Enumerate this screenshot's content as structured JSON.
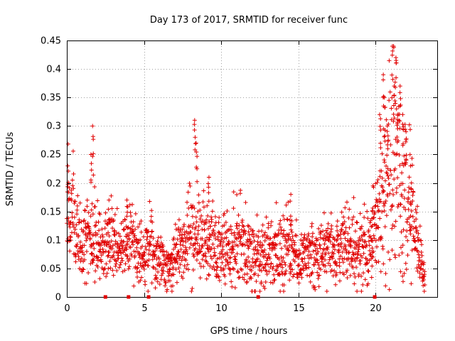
{
  "chart_data": {
    "type": "scatter",
    "title": "Day 173 of 2017, SRMTID for receiver func",
    "xlabel": "GPS time / hours",
    "ylabel": "SRMTID / TECUs",
    "xlim": [
      0,
      24
    ],
    "ylim": [
      0,
      0.45
    ],
    "xticks": [
      "0",
      "5",
      "10",
      "15",
      "20"
    ],
    "yticks": [
      "0",
      "0.05",
      "0.1",
      "0.15",
      "0.2",
      "0.25",
      "0.3",
      "0.35",
      "0.4",
      "0.45"
    ],
    "grid": true,
    "marker": "+",
    "color": "#e00000",
    "zero_markers": [
      2.5,
      4.0,
      5.3,
      12.4,
      19.95
    ],
    "trend": [
      [
        0.0,
        0.14
      ],
      [
        0.3,
        0.15
      ],
      [
        0.6,
        0.1
      ],
      [
        1.0,
        0.09
      ],
      [
        1.4,
        0.1
      ],
      [
        1.8,
        0.11
      ],
      [
        2.2,
        0.08
      ],
      [
        2.6,
        0.1
      ],
      [
        3.0,
        0.09
      ],
      [
        3.4,
        0.08
      ],
      [
        3.8,
        0.09
      ],
      [
        4.2,
        0.1
      ],
      [
        4.6,
        0.08
      ],
      [
        5.0,
        0.07
      ],
      [
        5.4,
        0.1
      ],
      [
        5.8,
        0.07
      ],
      [
        6.2,
        0.06
      ],
      [
        6.6,
        0.05
      ],
      [
        7.0,
        0.07
      ],
      [
        7.5,
        0.08
      ],
      [
        8.0,
        0.12
      ],
      [
        8.5,
        0.1
      ],
      [
        9.0,
        0.1
      ],
      [
        9.5,
        0.09
      ],
      [
        10.0,
        0.09
      ],
      [
        10.5,
        0.08
      ],
      [
        11.0,
        0.1
      ],
      [
        11.5,
        0.09
      ],
      [
        12.0,
        0.07
      ],
      [
        12.5,
        0.07
      ],
      [
        13.0,
        0.08
      ],
      [
        13.5,
        0.08
      ],
      [
        14.0,
        0.09
      ],
      [
        14.5,
        0.08
      ],
      [
        15.0,
        0.07
      ],
      [
        15.5,
        0.07
      ],
      [
        16.0,
        0.07
      ],
      [
        16.5,
        0.08
      ],
      [
        17.0,
        0.09
      ],
      [
        17.5,
        0.09
      ],
      [
        18.0,
        0.1
      ],
      [
        18.5,
        0.09
      ],
      [
        19.0,
        0.09
      ],
      [
        19.5,
        0.08
      ],
      [
        20.0,
        0.12
      ],
      [
        20.4,
        0.16
      ],
      [
        20.8,
        0.22
      ],
      [
        21.2,
        0.26
      ],
      [
        21.6,
        0.22
      ],
      [
        22.0,
        0.2
      ],
      [
        22.4,
        0.15
      ],
      [
        22.8,
        0.08
      ],
      [
        23.2,
        0.04
      ]
    ],
    "spikes": [
      {
        "x": 0.1,
        "y": 0.23
      },
      {
        "x": 1.6,
        "y": 0.25
      },
      {
        "x": 1.7,
        "y": 0.3
      },
      {
        "x": 2.7,
        "y": 0.17
      },
      {
        "x": 3.9,
        "y": 0.17
      },
      {
        "x": 8.3,
        "y": 0.31
      },
      {
        "x": 8.4,
        "y": 0.27
      },
      {
        "x": 9.2,
        "y": 0.21
      },
      {
        "x": 14.5,
        "y": 0.18
      },
      {
        "x": 19.8,
        "y": 0.15
      },
      {
        "x": 20.3,
        "y": 0.32
      },
      {
        "x": 20.5,
        "y": 0.39
      },
      {
        "x": 20.6,
        "y": 0.35
      },
      {
        "x": 21.1,
        "y": 0.44
      },
      {
        "x": 21.3,
        "y": 0.42
      },
      {
        "x": 21.2,
        "y": 0.37
      },
      {
        "x": 21.6,
        "y": 0.37
      },
      {
        "x": 21.8,
        "y": 0.32
      },
      {
        "x": 22.0,
        "y": 0.29
      },
      {
        "x": 21.4,
        "y": 0.33
      },
      {
        "x": 20.8,
        "y": 0.3
      },
      {
        "x": 22.3,
        "y": 0.2
      },
      {
        "x": 23.1,
        "y": 0.02
      }
    ]
  }
}
